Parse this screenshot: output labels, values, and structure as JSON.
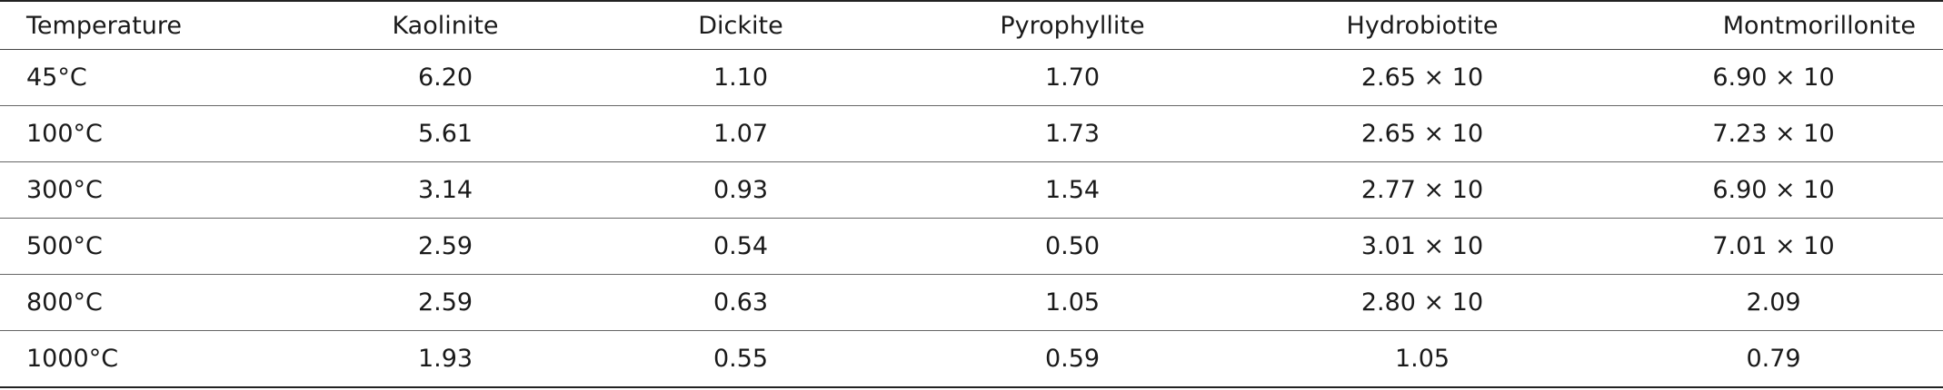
{
  "table": {
    "headers": [
      "Temperature",
      "Kaolinite",
      "Dickite",
      "Pyrophyllite",
      "Hydrobiotite",
      "Montmorillonite"
    ],
    "rows": [
      [
        "45°C",
        "6.20",
        "1.10",
        "1.70",
        "2.65 × 10",
        "6.90 × 10"
      ],
      [
        "100°C",
        "5.61",
        "1.07",
        "1.73",
        "2.65 × 10",
        "7.23 × 10"
      ],
      [
        "300°C",
        "3.14",
        "0.93",
        "1.54",
        "2.77 × 10",
        "6.90 × 10"
      ],
      [
        "500°C",
        "2.59",
        "0.54",
        "0.50",
        "3.01 × 10",
        "7.01 × 10"
      ],
      [
        "800°C",
        "2.59",
        "0.63",
        "1.05",
        "2.80 × 10",
        "2.09"
      ],
      [
        "1000°C",
        "1.93",
        "0.55",
        "0.59",
        "1.05",
        "0.79"
      ]
    ]
  }
}
